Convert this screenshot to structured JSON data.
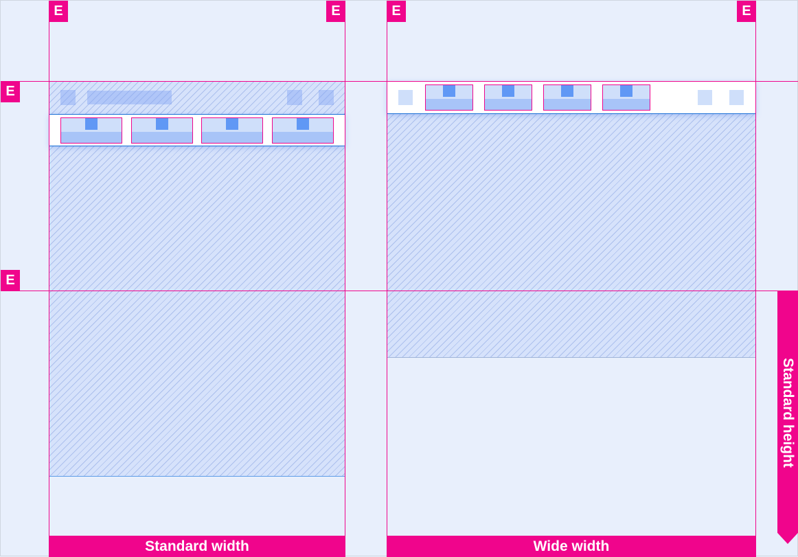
{
  "markers": {
    "edge": "E"
  },
  "labels": {
    "standard_width": "Standard width",
    "wide_width": "Wide width",
    "standard_height": "Standard height"
  },
  "colors": {
    "accent": "#f0058c",
    "container": "#6098f5",
    "background": "#e8effc"
  },
  "standard_layout": {
    "tab_count": 4
  },
  "wide_layout": {
    "tab_count": 4
  }
}
